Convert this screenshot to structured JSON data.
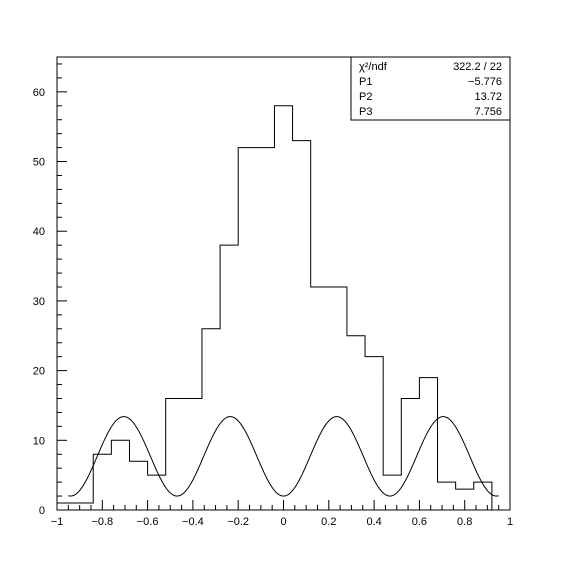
{
  "chart_data": {
    "type": "histogram",
    "xlim": [
      -1,
      1
    ],
    "ylim": [
      0,
      65
    ],
    "x_ticks": [
      -1,
      -0.8,
      -0.6,
      -0.4,
      -0.2,
      0,
      0.2,
      0.4,
      0.6,
      0.8,
      1
    ],
    "x_tick_labels": [
      "−1",
      "−0.8",
      "−0.6",
      "−0.4",
      "−0.2",
      "0",
      "0.2",
      "0.4",
      "0.6",
      "0.8",
      "1"
    ],
    "y_ticks": [
      0,
      10,
      20,
      30,
      40,
      50,
      60
    ],
    "y_tick_labels": [
      "0",
      "10",
      "20",
      "30",
      "40",
      "50",
      "60"
    ],
    "bin_edges": [
      -1.0,
      -0.84,
      -0.76,
      -0.68,
      -0.6,
      -0.52,
      -0.44,
      -0.36,
      -0.28,
      -0.2,
      -0.12,
      -0.04,
      0.04,
      0.12,
      0.2,
      0.28,
      0.36,
      0.44,
      0.52,
      0.6,
      0.68,
      0.76,
      0.84,
      0.92
    ],
    "bin_counts": [
      1,
      8,
      10,
      7,
      5,
      16,
      16,
      26,
      38,
      52,
      52,
      58,
      53,
      32,
      32,
      25,
      22,
      5,
      16,
      19,
      4,
      3,
      4
    ],
    "fit": {
      "function": "P1 + P2*cos(4*pi*x) + P3*cos(2*pi*x)... (oscillating fit curve)",
      "samples": []
    },
    "stats_box": {
      "rows": [
        {
          "label": "χ²/ndf",
          "value": "322.2   /   22"
        },
        {
          "label": "P1",
          "value": "−5.776"
        },
        {
          "label": "P2",
          "value": "13.72"
        },
        {
          "label": "P3",
          "value": "7.756"
        }
      ]
    }
  }
}
